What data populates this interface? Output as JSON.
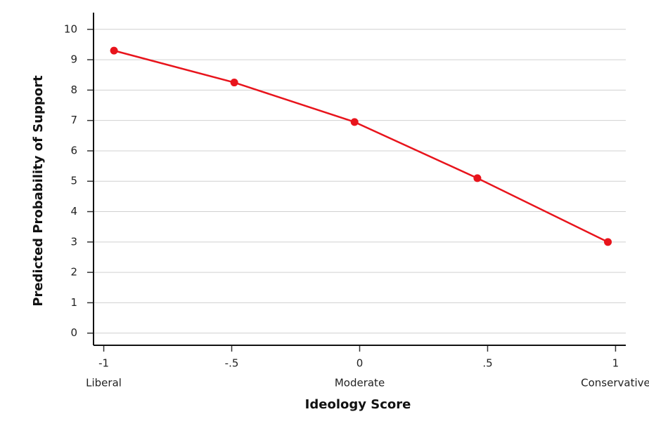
{
  "chart_data": {
    "type": "line",
    "xlabel": "Ideology Score",
    "ylabel": "Predicted Probability of Support",
    "x": [
      -0.96,
      -0.49,
      -0.02,
      0.46,
      0.97
    ],
    "values": [
      9.3,
      8.25,
      6.95,
      5.1,
      3.0
    ],
    "color": "#e8141c",
    "xlim": [
      -1.04,
      1.04
    ],
    "xticks": [
      -1,
      {
        "value": -0.5,
        "label": "-.5"
      },
      0,
      {
        "value": 0.5,
        "label": ".5"
      },
      1
    ],
    "xtick_sublabels": [
      "Liberal",
      null,
      "Moderate",
      null,
      "Conservative"
    ],
    "ylim": [
      -0.4,
      10.55
    ],
    "yticks": [
      0,
      1,
      2,
      3,
      4,
      5,
      6,
      7,
      8,
      9,
      10
    ],
    "grid": true
  }
}
